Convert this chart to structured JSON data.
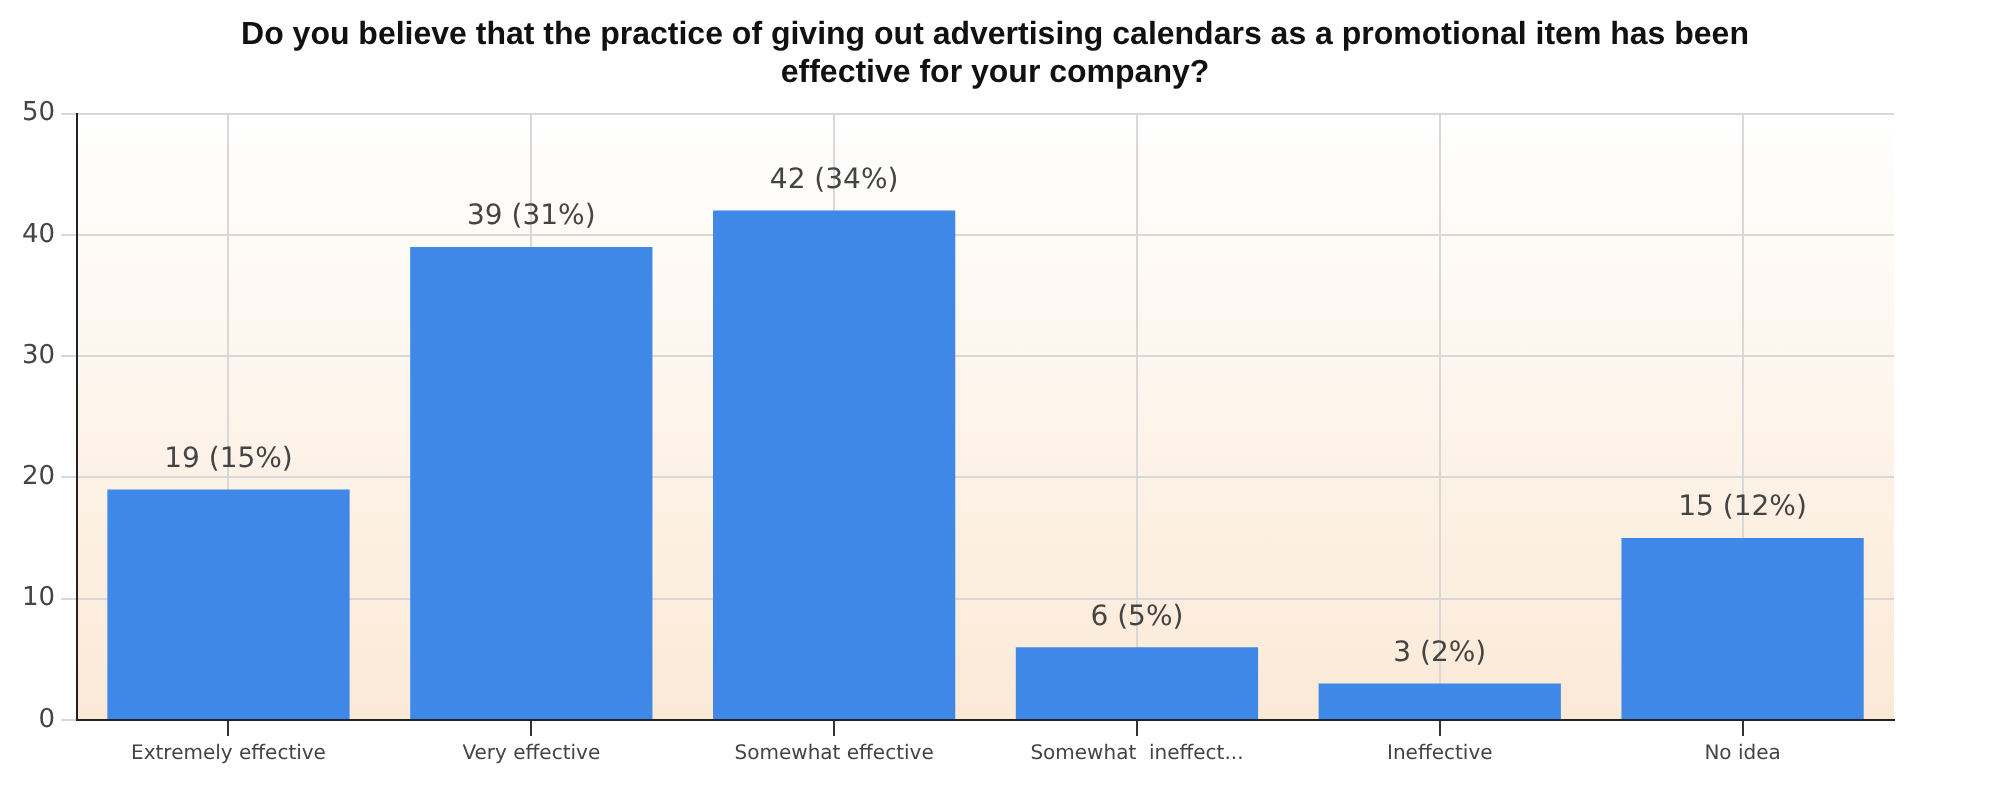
{
  "chart_data": {
    "type": "bar",
    "title": "Do you believe that the practice of giving out advertising calendars as a promotional item has been effective for your company?",
    "categories": [
      "Extremely effective",
      "Very effective",
      "Somewhat effective",
      "Somewhat  ineffect...",
      "Ineffective",
      "No idea"
    ],
    "values": [
      19,
      39,
      42,
      6,
      3,
      15
    ],
    "value_labels": [
      "19 (15%)",
      "39 (31%)",
      "42 (34%)",
      "6 (5%)",
      "3 (2%)",
      "15 (12%)"
    ],
    "color": "#3f88e8",
    "ylim": [
      0,
      50
    ],
    "yticks": [
      0,
      10,
      20,
      30,
      40,
      50
    ],
    "grid": true,
    "legend": false
  }
}
